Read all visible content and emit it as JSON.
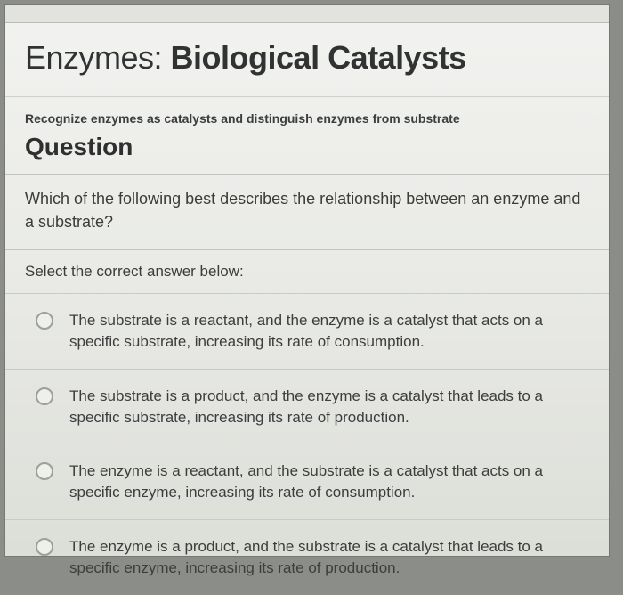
{
  "page": {
    "title_prefix": "Enzymes: ",
    "title_bold": "Biological Catalysts",
    "subhead": "Recognize enzymes as catalysts and distinguish enzymes from substrate",
    "question_label": "Question",
    "question_text": "Which of the following best describes the relationship between an enzyme and a substrate?",
    "select_label": "Select the correct answer below:"
  },
  "options": [
    {
      "text": "The substrate is a reactant, and the enzyme is a catalyst that acts on a specific substrate, increasing its rate of consumption."
    },
    {
      "text": "The substrate is a product, and the enzyme is a catalyst that leads to a specific substrate, increasing its rate of production."
    },
    {
      "text": "The enzyme is a reactant, and the substrate is a catalyst that acts on a specific enzyme, increasing its rate of consumption."
    },
    {
      "text": "The enzyme is a product, and the substrate is a catalyst that leads to a specific enzyme, increasing its rate of production."
    }
  ]
}
